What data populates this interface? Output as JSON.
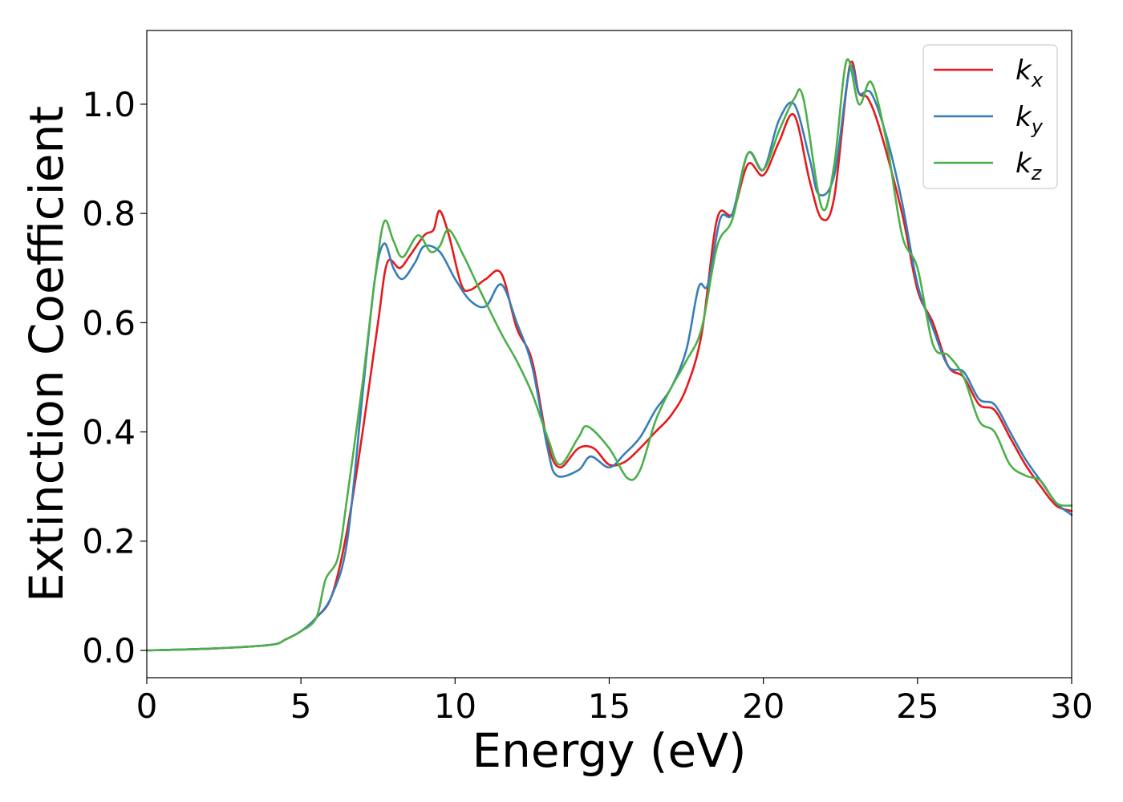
{
  "chart_data": {
    "type": "line",
    "title": "",
    "xlabel": "Energy (eV)",
    "ylabel": "Extinction Coefficient",
    "xlim": [
      0,
      30
    ],
    "ylim": [
      -0.05,
      1.135
    ],
    "xticks": [
      0,
      5,
      10,
      15,
      20,
      25,
      30
    ],
    "xtick_labels": [
      "0",
      "5",
      "10",
      "15",
      "20",
      "25",
      "30"
    ],
    "yticks": [
      0.0,
      0.2,
      0.4,
      0.6,
      0.8,
      1.0
    ],
    "ytick_labels": [
      "0.0",
      "0.2",
      "0.4",
      "0.6",
      "0.8",
      "1.0"
    ],
    "grid": false,
    "legend_position": "top-right",
    "series": [
      {
        "name": "k",
        "subscript": "x",
        "color": "#e41a1c",
        "x": [
          0,
          2,
          4,
          4.5,
          5,
          5.5,
          6,
          6.5,
          7,
          7.5,
          7.8,
          8.2,
          8.5,
          9,
          9.3,
          9.5,
          9.8,
          10.2,
          10.5,
          11,
          11.5,
          12,
          12.5,
          13,
          13.4,
          14,
          14.5,
          15,
          15.5,
          16,
          16.5,
          17,
          17.5,
          18,
          18.5,
          19,
          19.5,
          20,
          20.5,
          21,
          21.5,
          21.9,
          22.3,
          22.8,
          23.1,
          23.4,
          23.8,
          24.5,
          25,
          25.5,
          26,
          26.5,
          27,
          27.5,
          28,
          28.5,
          29,
          29.5,
          30
        ],
        "y": [
          0.0,
          0.003,
          0.01,
          0.02,
          0.035,
          0.06,
          0.1,
          0.22,
          0.4,
          0.6,
          0.71,
          0.7,
          0.72,
          0.76,
          0.77,
          0.805,
          0.76,
          0.67,
          0.66,
          0.68,
          0.69,
          0.59,
          0.53,
          0.38,
          0.335,
          0.37,
          0.37,
          0.34,
          0.345,
          0.37,
          0.4,
          0.43,
          0.48,
          0.58,
          0.79,
          0.8,
          0.89,
          0.87,
          0.93,
          0.98,
          0.86,
          0.79,
          0.83,
          1.07,
          1.02,
          1.01,
          0.95,
          0.8,
          0.66,
          0.6,
          0.52,
          0.5,
          0.45,
          0.44,
          0.39,
          0.34,
          0.3,
          0.265,
          0.255
        ]
      },
      {
        "name": "k",
        "subscript": "y",
        "color": "#377eb8",
        "x": [
          0,
          2,
          4,
          4.5,
          5,
          5.5,
          6,
          6.5,
          7,
          7.4,
          7.7,
          8.0,
          8.3,
          8.7,
          9,
          9.5,
          10,
          10.5,
          11,
          11.5,
          12,
          12.5,
          13,
          13.3,
          14,
          14.4,
          15,
          15.5,
          16,
          16.5,
          17,
          17.5,
          17.9,
          18.2,
          18.6,
          19,
          19.5,
          20,
          20.5,
          21,
          21.5,
          21.8,
          22.3,
          22.8,
          23.1,
          23.5,
          24,
          24.5,
          25,
          25.5,
          26,
          26.5,
          27,
          27.5,
          28,
          28.5,
          29,
          29.5,
          30
        ],
        "y": [
          0.0,
          0.003,
          0.01,
          0.02,
          0.035,
          0.06,
          0.1,
          0.2,
          0.47,
          0.68,
          0.745,
          0.7,
          0.68,
          0.71,
          0.74,
          0.73,
          0.68,
          0.64,
          0.63,
          0.67,
          0.6,
          0.52,
          0.37,
          0.32,
          0.33,
          0.355,
          0.335,
          0.36,
          0.39,
          0.44,
          0.48,
          0.55,
          0.665,
          0.67,
          0.79,
          0.8,
          0.91,
          0.88,
          0.97,
          1.0,
          0.9,
          0.835,
          0.87,
          1.065,
          1.02,
          1.02,
          0.94,
          0.82,
          0.67,
          0.59,
          0.52,
          0.51,
          0.46,
          0.45,
          0.4,
          0.35,
          0.31,
          0.27,
          0.248
        ]
      },
      {
        "name": "k",
        "subscript": "z",
        "color": "#4daf4a",
        "x": [
          0,
          2,
          4,
          4.5,
          5,
          5.5,
          5.8,
          6.2,
          6.5,
          7,
          7.4,
          7.7,
          8.0,
          8.3,
          8.8,
          9.2,
          9.5,
          9.8,
          10.3,
          10.8,
          11.5,
          12,
          12.5,
          13,
          13.4,
          14,
          14.3,
          15,
          15.6,
          16,
          16.5,
          17,
          17.5,
          18,
          18.5,
          19,
          19.5,
          20,
          20.5,
          21,
          21.3,
          21.9,
          22.3,
          22.7,
          23.1,
          23.5,
          24,
          24.5,
          25,
          25.5,
          26,
          26.5,
          27,
          27.5,
          28,
          28.5,
          29,
          29.5,
          30
        ],
        "y": [
          0.0,
          0.003,
          0.01,
          0.02,
          0.035,
          0.06,
          0.13,
          0.17,
          0.28,
          0.49,
          0.68,
          0.785,
          0.75,
          0.72,
          0.76,
          0.73,
          0.74,
          0.77,
          0.72,
          0.66,
          0.58,
          0.53,
          0.47,
          0.39,
          0.34,
          0.39,
          0.41,
          0.37,
          0.315,
          0.33,
          0.42,
          0.48,
          0.53,
          0.59,
          0.74,
          0.79,
          0.91,
          0.88,
          0.95,
          1.01,
          1.01,
          0.81,
          0.89,
          1.08,
          1.0,
          1.04,
          0.93,
          0.76,
          0.7,
          0.56,
          0.54,
          0.5,
          0.42,
          0.4,
          0.34,
          0.32,
          0.31,
          0.27,
          0.265
        ]
      }
    ]
  }
}
